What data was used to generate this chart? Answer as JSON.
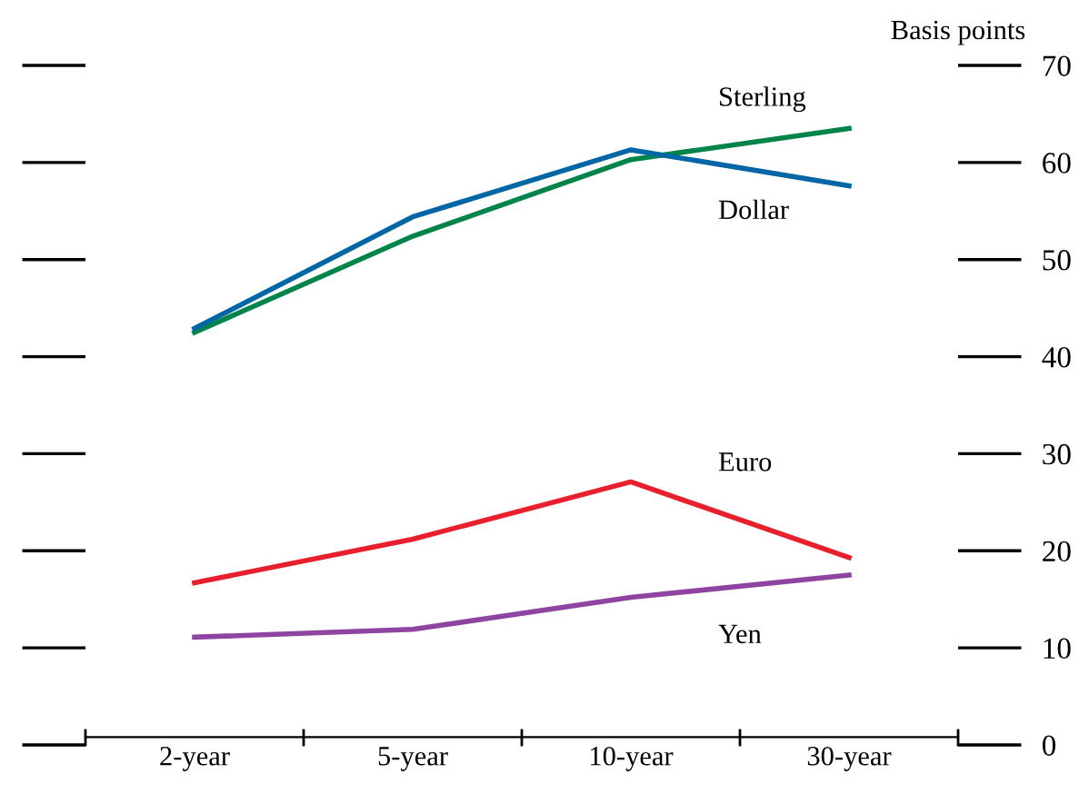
{
  "chart_data": {
    "type": "line",
    "ylabel": "Basis points",
    "categories": [
      "2-year",
      "5-year",
      "10-year",
      "30-year"
    ],
    "series": [
      {
        "name": "Sterling",
        "color": "#00844a",
        "values": [
          42.5,
          52.4,
          60.3,
          63.5
        ]
      },
      {
        "name": "Dollar",
        "color": "#0066a6",
        "values": [
          42.9,
          54.4,
          61.3,
          57.6
        ]
      },
      {
        "name": "Euro",
        "color": "#e8202e",
        "values": [
          16.7,
          21.2,
          27.1,
          19.3
        ]
      },
      {
        "name": "Yen",
        "color": "#8e44a0",
        "values": [
          11.1,
          11.9,
          15.2,
          17.5
        ]
      }
    ],
    "ylim": [
      0,
      70
    ],
    "yticks": [
      0,
      10,
      20,
      30,
      40,
      50,
      60,
      70
    ],
    "grid": false,
    "marker": "none",
    "line_style": "solid"
  }
}
